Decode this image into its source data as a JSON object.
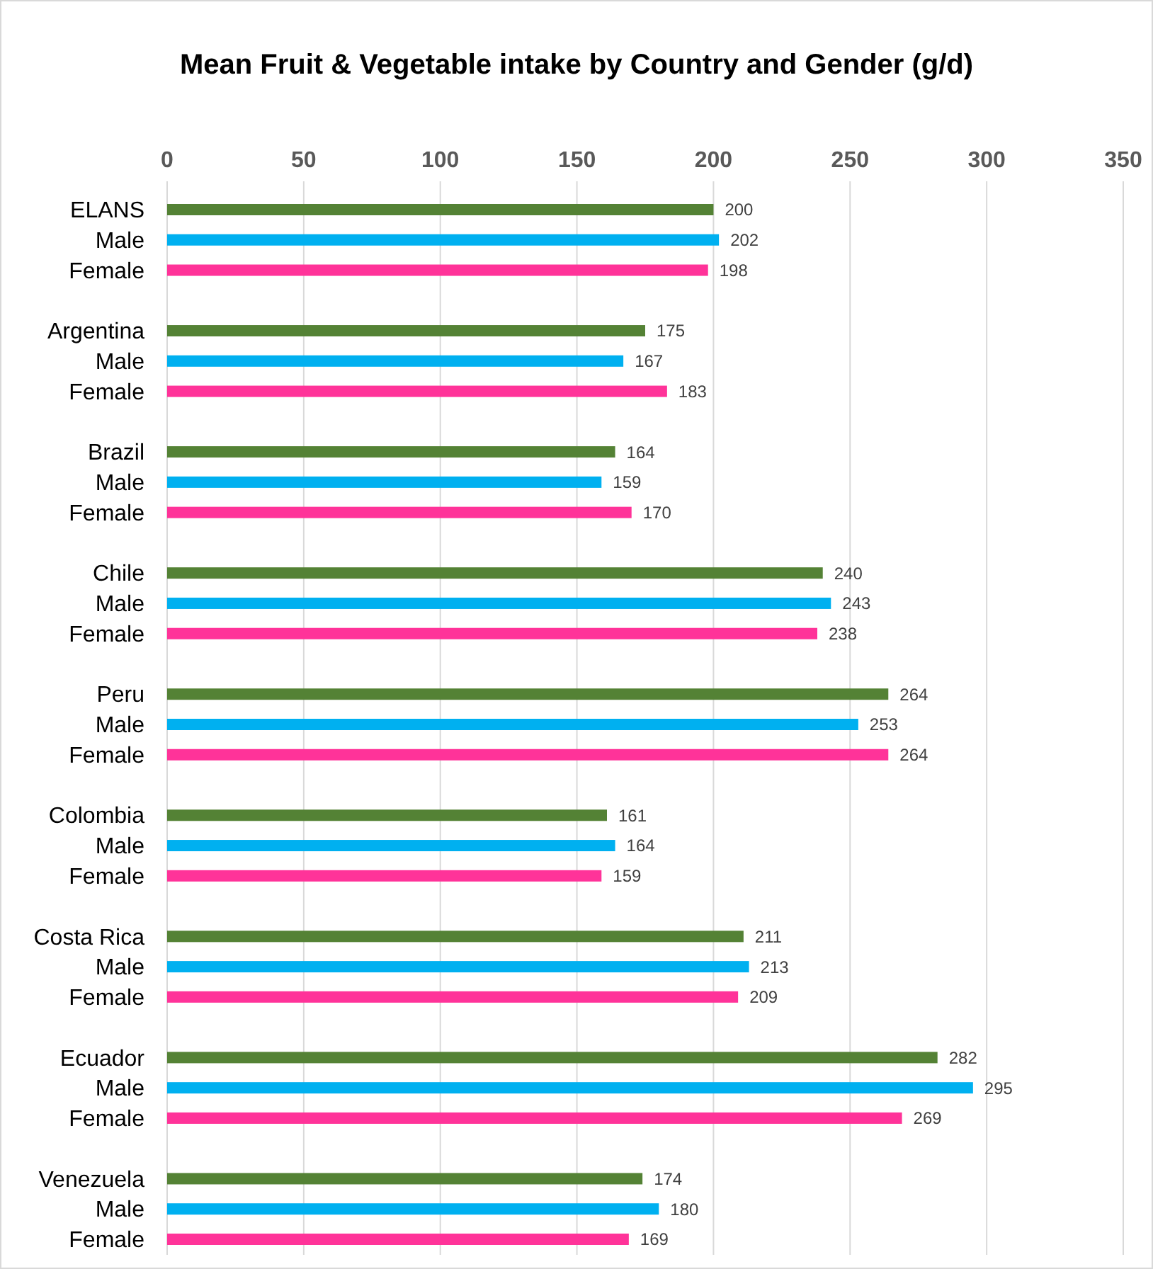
{
  "chart_data": {
    "type": "bar",
    "orientation": "horizontal",
    "title": "Mean Fruit & Vegetable intake by Country and Gender (g/d)",
    "categories": [
      "ELANS",
      "Male",
      "Female",
      null,
      "Argentina",
      "Male",
      "Female",
      null,
      "Brazil",
      "Male",
      "Female",
      null,
      "Chile",
      "Male",
      "Female",
      null,
      "Peru",
      "Male",
      "Female",
      null,
      "Colombia",
      "Male",
      "Female",
      null,
      "Costa Rica",
      "Male",
      "Female",
      null,
      "Ecuador",
      "Male",
      "Female",
      null,
      "Venezuela",
      "Male",
      "Female"
    ],
    "values": [
      200,
      202,
      198,
      null,
      175,
      167,
      183,
      null,
      164,
      159,
      170,
      null,
      240,
      243,
      238,
      null,
      264,
      253,
      264,
      null,
      161,
      164,
      159,
      null,
      211,
      213,
      209,
      null,
      282,
      295,
      269,
      null,
      174,
      180,
      169
    ],
    "colors": [
      "#548235",
      "#00b0f0",
      "#ff3399",
      null,
      "#548235",
      "#00b0f0",
      "#ff3399",
      null,
      "#548235",
      "#00b0f0",
      "#ff3399",
      null,
      "#548235",
      "#00b0f0",
      "#ff3399",
      null,
      "#548235",
      "#00b0f0",
      "#ff3399",
      null,
      "#548235",
      "#00b0f0",
      "#ff3399",
      null,
      "#548235",
      "#00b0f0",
      "#ff3399",
      null,
      "#548235",
      "#00b0f0",
      "#ff3399",
      null,
      "#548235",
      "#00b0f0",
      "#ff3399"
    ],
    "xlim": [
      0,
      350
    ],
    "xticks": [
      0,
      50,
      100,
      150,
      200,
      250,
      300,
      350
    ],
    "grid": "x",
    "data_labels": true
  }
}
